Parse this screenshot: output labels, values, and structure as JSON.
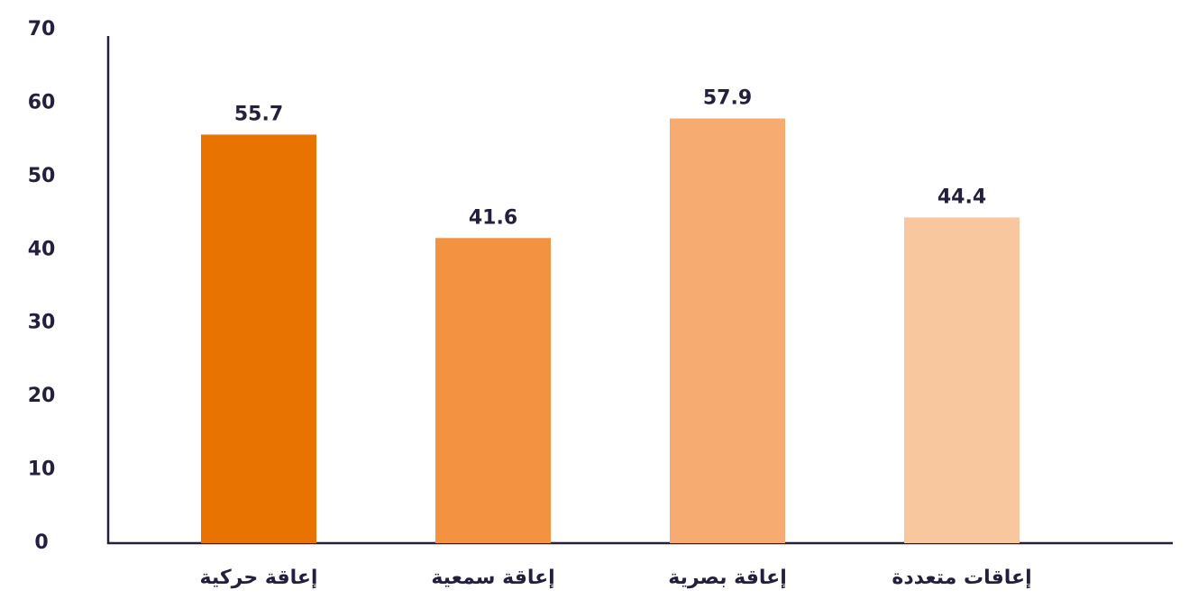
{
  "chart_data": {
    "type": "bar",
    "categories": [
      "إعاقة حركية",
      "إعاقة سمعية",
      "إعاقة بصرية",
      "إعاقات متعددة"
    ],
    "values": [
      55.7,
      41.6,
      57.9,
      44.4
    ],
    "colors": [
      "#e87300",
      "#f39341",
      "#f6ab70",
      "#f9c79d"
    ],
    "ylim": [
      0,
      70
    ],
    "yticks": [
      0,
      10,
      20,
      30,
      40,
      50,
      60,
      70
    ],
    "grid": false
  }
}
